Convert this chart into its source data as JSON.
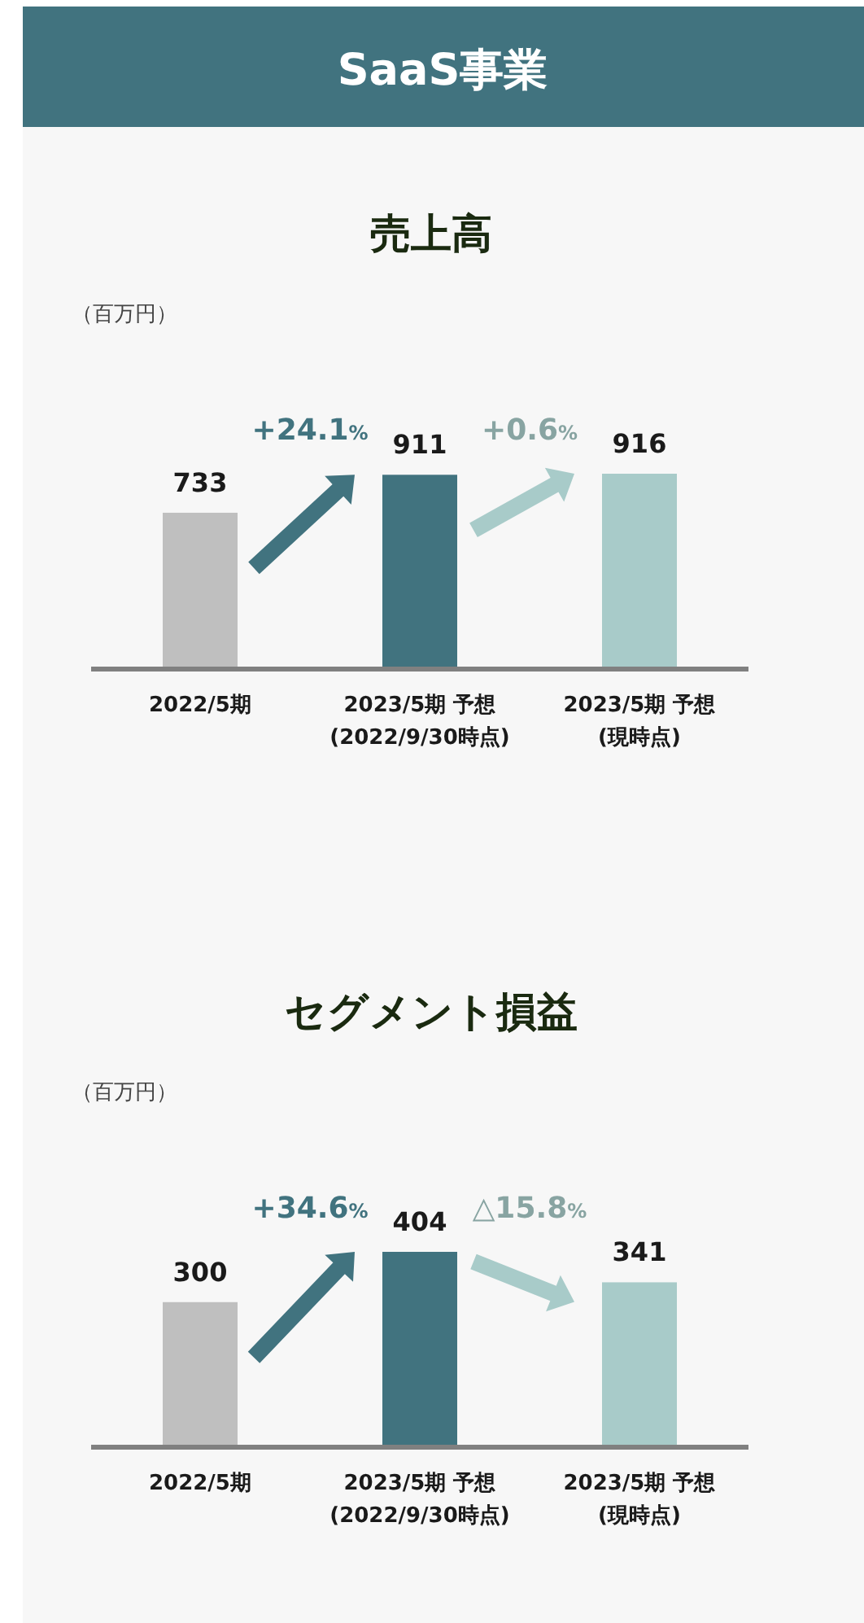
{
  "chart_data": [
    {
      "type": "other",
      "title": "SaaS事業"
    },
    {
      "type": "bar",
      "title": "売上高",
      "ylabel": "（百万円）",
      "categories": [
        "2022/5期",
        "2023/5期 予想\n(2022/9/30時点)",
        "2023/5期 予想\n(現時点)"
      ],
      "values": [
        733,
        911,
        916
      ],
      "colors": [
        "#bfbfbf",
        "#41737f",
        "#a8cbc9"
      ],
      "data_labels": true,
      "annotations": [
        "+24.1%",
        "+0.6%"
      ]
    },
    {
      "type": "bar",
      "title": "セグメント損益",
      "ylabel": "（百万円）",
      "categories": [
        "2022/5期",
        "2023/5期 予想\n(2022/9/30時点)",
        "2023/5期 予想\n(現時点)"
      ],
      "values": [
        300,
        404,
        341
      ],
      "colors": [
        "#bfbfbf",
        "#41737f",
        "#a8cbc9"
      ],
      "data_labels": true,
      "annotations": [
        "+34.6%",
        "△15.8%"
      ]
    }
  ]
}
